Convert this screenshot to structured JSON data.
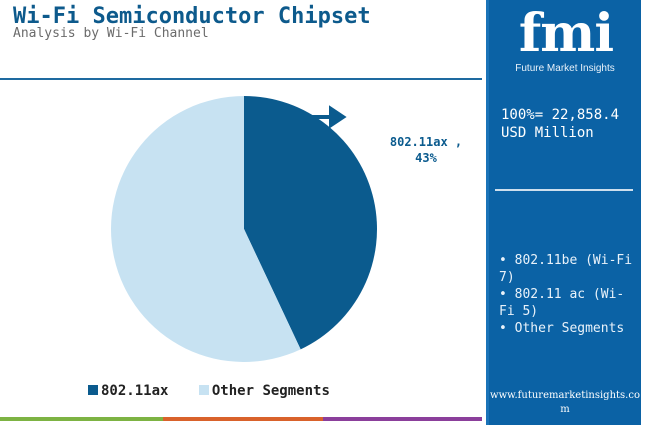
{
  "header": {
    "title": "Wi-Fi Semiconductor Chipset",
    "subtitle": "Analysis by Wi-Fi Channel"
  },
  "chart_data": {
    "type": "pie",
    "slices": [
      {
        "label": "802.11ax",
        "value": 43,
        "color": "#0b5b8e"
      },
      {
        "label": "Other Segments",
        "value": 57,
        "color": "#c7e2f2"
      }
    ],
    "annotation": {
      "line1": "802.11ax ,",
      "line2": "43%"
    },
    "legend": {
      "placement": "bottom",
      "entries": [
        "802.11ax",
        "Other Segments"
      ]
    }
  },
  "side_panel": {
    "logo": "fmi",
    "logo_subtitle": "Future Market Insights",
    "total_line1": "100%= 22,858.4",
    "total_line2": "USD Million",
    "segments": [
      "• 802.11be (Wi-Fi 7)",
      "• 802.11 ac (Wi-Fi 5)",
      "• Other Segments"
    ],
    "website": "www.futuremarketinsights.com"
  },
  "colors": {
    "accent": "#0b5b8e",
    "light": "#c7e2f2",
    "panel": "#0b62a5",
    "footer": [
      "#7db343",
      "#d9622b",
      "#8b3f9b"
    ]
  }
}
